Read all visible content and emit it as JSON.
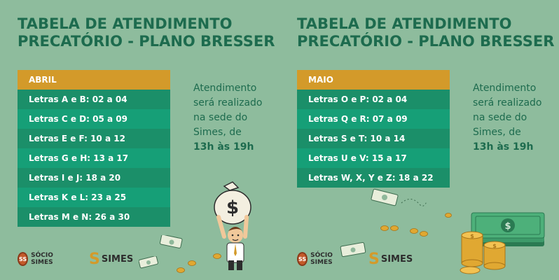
{
  "left": {
    "title_line1": "TABELA DE ATENDIMENTO",
    "title_line2": "PRECATÓRIO - PLANO BRESSER",
    "month": "ABRIL",
    "rows": [
      "Letras A e B: 02 a 04",
      "Letras C e D: 05 a 09",
      "Letras E e F: 10 a 12",
      "Letras G e H: 13 a 17",
      "Letras I e J: 18 a 20",
      "Letras K e L: 23 a 25",
      "Letras M e N: 26 a 30"
    ],
    "note_line1": "Atendimento",
    "note_line2": "será realizado",
    "note_line3": "na sede do",
    "note_line4": "Simes, de",
    "note_hours": "13h às 19h"
  },
  "right": {
    "title_line1": "TABELA DE ATENDIMENTO",
    "title_line2": "PRECATÓRIO - PLANO BRESSER",
    "month": "MAIO",
    "rows": [
      "Letras O e P: 02 a 04",
      "Letras Q e R: 07 a 09",
      "Letras S e T: 10 a 14",
      "Letras U e V: 15 a 17",
      "Letras W, X, Y e Z: 18 a 22"
    ],
    "note_line1": "Atendimento",
    "note_line2": "será realizado",
    "note_line3": "na sede do",
    "note_line4": "Simes, de",
    "note_hours": "13h às 19h"
  },
  "logos": {
    "socio_mark": "SS",
    "socio_name": "SÓCIO SIMES",
    "simes_mark": "S",
    "simes_name": "SIMES"
  },
  "colors": {
    "background": "#8ebc9d",
    "title": "#1d6b4e",
    "header": "#d39a2a",
    "row_dark": "#1b8f69",
    "row_light": "#169f77"
  },
  "icons": {
    "money_bag": "money-bag-icon",
    "dollar_bill": "dollar-bill-icon",
    "coin": "coin-icon",
    "coin_stack": "coin-stack-icon"
  }
}
